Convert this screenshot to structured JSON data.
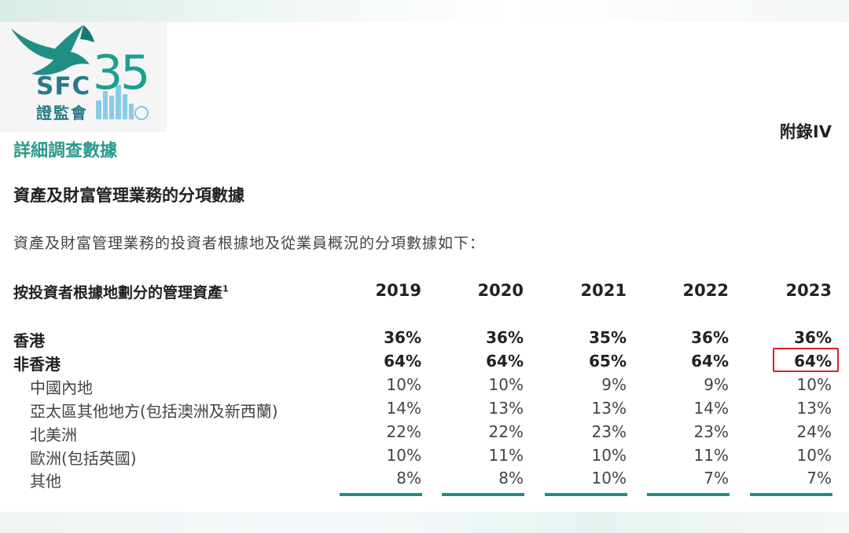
{
  "header": {
    "logo": {
      "brand": "SFC",
      "brand_cn": "證監會",
      "anniversary": "35"
    },
    "appendix": "附錄IV",
    "section_title": "詳細調查數據"
  },
  "content": {
    "subtitle": "資產及財富管理業務的分項數據",
    "intro": "資產及財富管理業務的投資者根據地及從業員概況的分項數據如下："
  },
  "table": {
    "label": "按投資者根據地劃分的管理資產",
    "label_note": "1",
    "years": [
      "2019",
      "2020",
      "2021",
      "2022",
      "2023"
    ],
    "rows": [
      {
        "label": "香港",
        "values": [
          "36%",
          "36%",
          "35%",
          "36%",
          "36%"
        ]
      },
      {
        "label": "非香港",
        "values": [
          "64%",
          "64%",
          "65%",
          "64%",
          "64%"
        ]
      },
      {
        "label": "中國內地",
        "values": [
          "10%",
          "10%",
          "9%",
          "9%",
          "10%"
        ]
      },
      {
        "label": "亞太區其他地方(包括澳洲及新西蘭)",
        "values": [
          "14%",
          "13%",
          "13%",
          "14%",
          "13%"
        ]
      },
      {
        "label": "北美洲",
        "values": [
          "22%",
          "22%",
          "23%",
          "23%",
          "24%"
        ]
      },
      {
        "label": "歐洲(包括英國)",
        "values": [
          "10%",
          "11%",
          "10%",
          "11%",
          "10%"
        ]
      },
      {
        "label": "其他",
        "values": [
          "8%",
          "8%",
          "10%",
          "7%",
          "7%"
        ]
      }
    ]
  },
  "colors": {
    "accent": "#2a9a8c",
    "highlight": "#e02020",
    "rule": "#1c8f86"
  }
}
